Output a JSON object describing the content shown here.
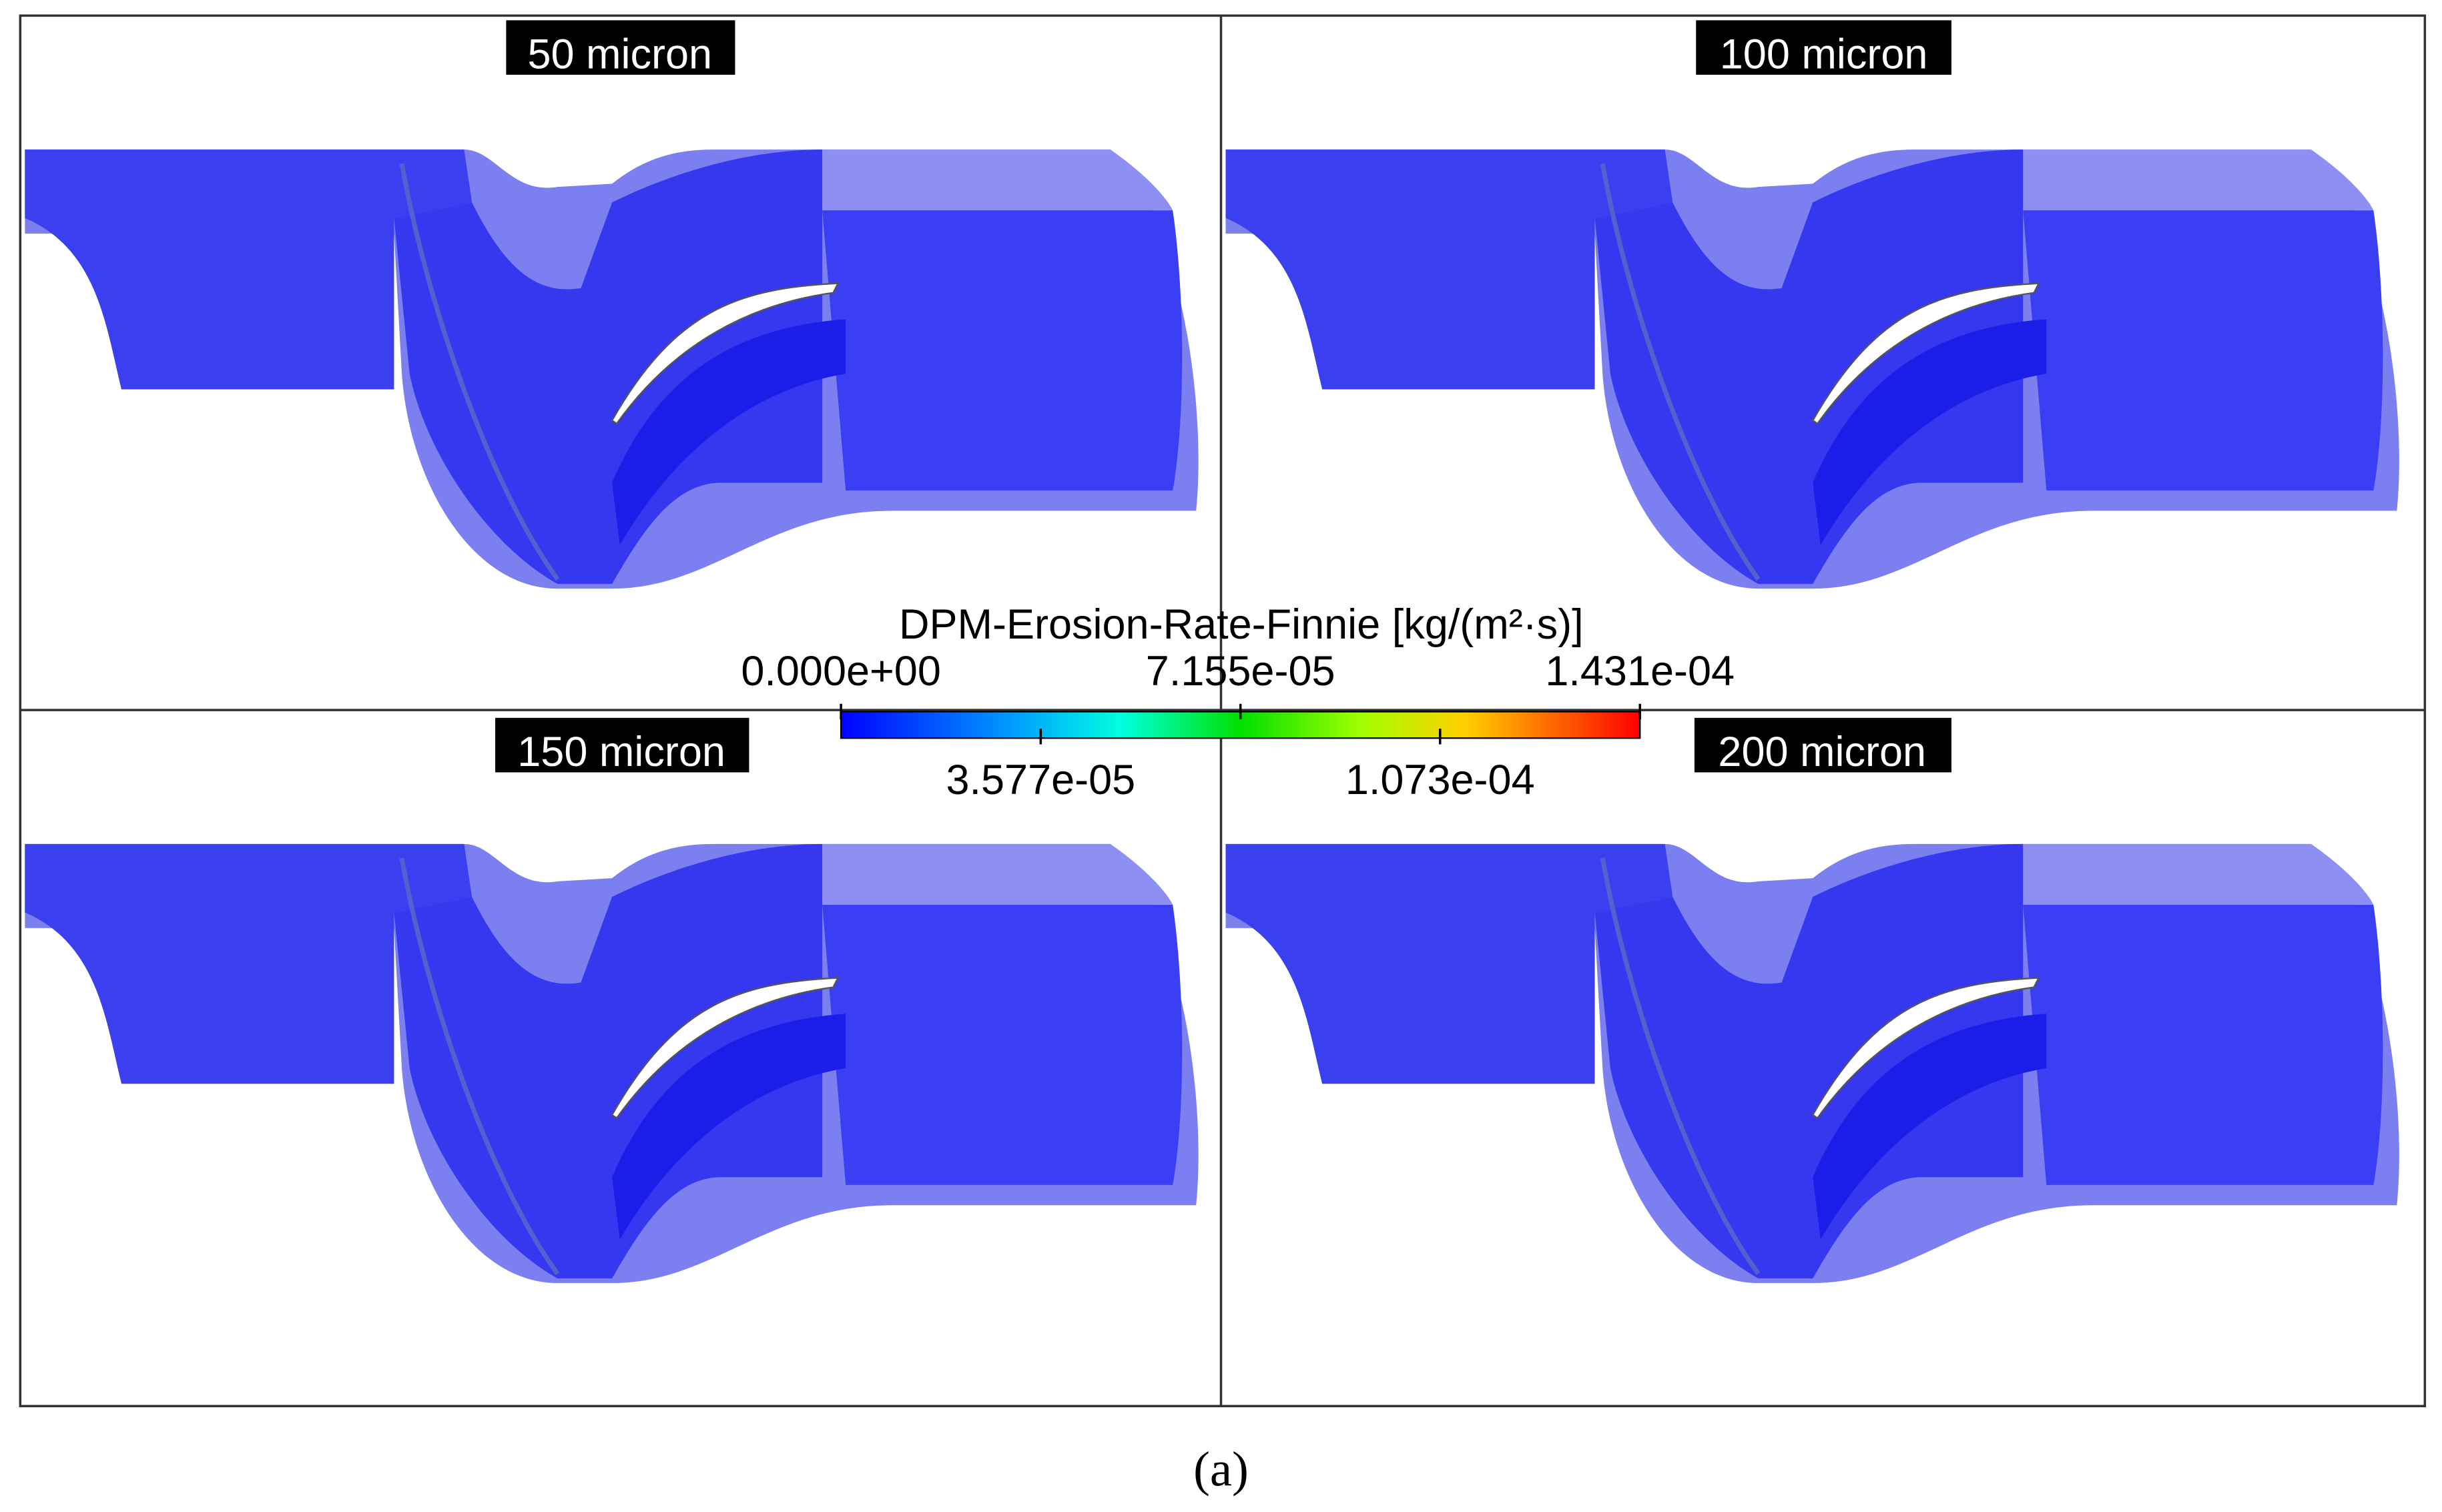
{
  "panels": [
    {
      "label": "50 micron"
    },
    {
      "label": "100 micron"
    },
    {
      "label": "150 micron"
    },
    {
      "label": "200 micron"
    }
  ],
  "colorbar": {
    "title": "DPM-Erosion-Rate-Finnie [kg/(m²·s)]",
    "lim": [
      0,
      0.0001431
    ],
    "ticks": [
      {
        "value": 0,
        "label": "0.000e+00"
      },
      {
        "value": 3.577e-05,
        "label": "3.577e-05"
      },
      {
        "value": 7.155e-05,
        "label": "7.155e-05"
      },
      {
        "value": 0.0001073,
        "label": "1.073e-04"
      },
      {
        "value": 0.0001431,
        "label": "1.431e-04"
      }
    ]
  },
  "caption": "(a)"
}
